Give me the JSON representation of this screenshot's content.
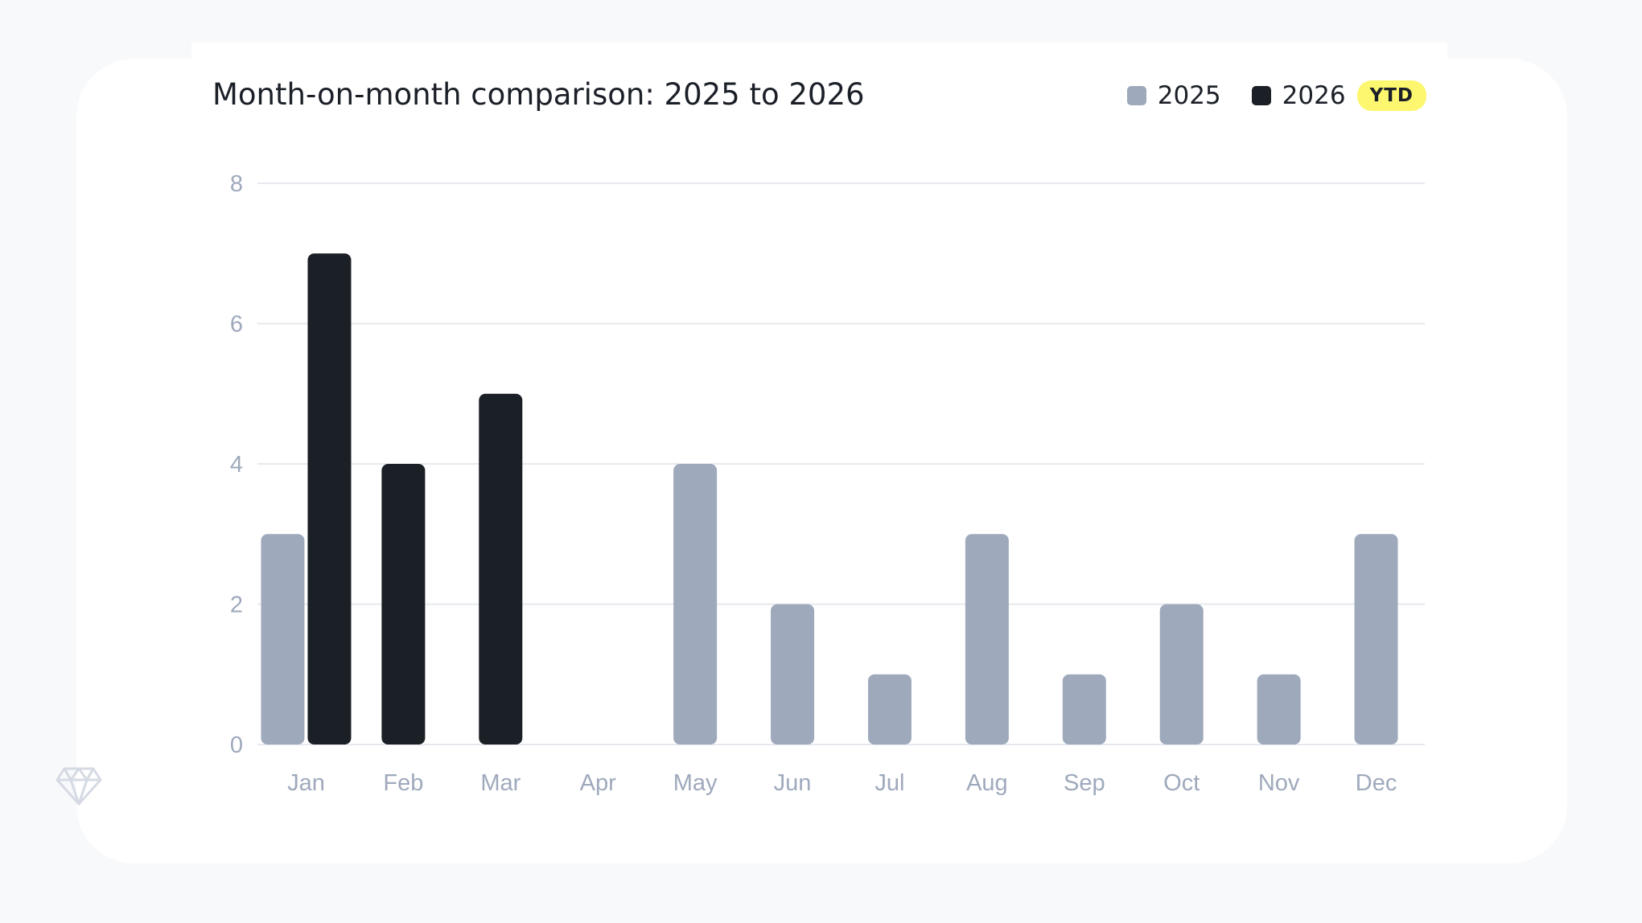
{
  "title": "Month-on-month comparison: 2025 to 2026",
  "legend": {
    "items": [
      {
        "label": "2025",
        "color": "#9fa9bc"
      },
      {
        "label": "2026",
        "color": "#1b1f26"
      }
    ],
    "badge": "YTD"
  },
  "chart_data": {
    "type": "bar",
    "categories": [
      "Jan",
      "Feb",
      "Mar",
      "Apr",
      "May",
      "Jun",
      "Jul",
      "Aug",
      "Sep",
      "Oct",
      "Nov",
      "Dec"
    ],
    "series": [
      {
        "name": "2025",
        "values": [
          3,
          null,
          null,
          null,
          4,
          2,
          1,
          3,
          1,
          2,
          1,
          3
        ],
        "color": "#9fa9bc"
      },
      {
        "name": "2026",
        "values": [
          7,
          4,
          5,
          null,
          null,
          null,
          null,
          null,
          null,
          null,
          null,
          null
        ],
        "color": "#1b1f26"
      }
    ],
    "title": "Month-on-month comparison: 2025 to 2026",
    "xlabel": "",
    "ylabel": "",
    "ylim": [
      0,
      8
    ],
    "yticks": [
      0,
      2,
      4,
      6,
      8
    ],
    "grid": true,
    "legend_position": "top-right"
  },
  "icons": {
    "watermark": "gem-icon"
  }
}
